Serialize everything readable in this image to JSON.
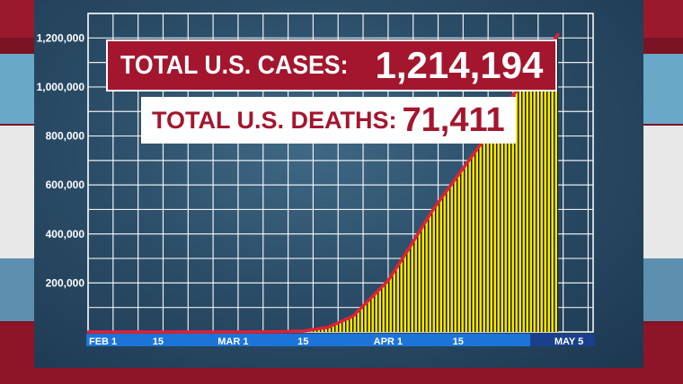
{
  "banners": {
    "cases_label": "TOTAL U.S. CASES:",
    "cases_value": "1,214,194",
    "deaths_label": "TOTAL U.S. DEATHS:",
    "deaths_value": "71,411"
  },
  "colors": {
    "brand_red": "#a3162e",
    "fill_yellow": "#f2e600",
    "line_red": "#e0203a",
    "axis_blue": "#1d74d8"
  },
  "chart_data": {
    "type": "area",
    "title": "",
    "xlabel": "",
    "ylabel": "",
    "ylim": [
      0,
      1300000
    ],
    "yticks": [
      200000,
      400000,
      600000,
      800000,
      1000000,
      1200000
    ],
    "ytick_labels": [
      "200,000",
      "400,000",
      "600,000",
      "800,000",
      "1,000,000",
      "1,200,000"
    ],
    "xticks": [
      "FEB 1",
      "15",
      "MAR 1",
      "15",
      "APR 1",
      "15",
      "MAY 5"
    ],
    "grid": true,
    "series": [
      {
        "values": [
          {
            "x": "2020-02-01",
            "y": 0
          },
          {
            "x": "2020-02-15",
            "y": 0
          },
          {
            "x": "2020-03-01",
            "y": 0
          },
          {
            "x": "2020-03-10",
            "y": 1000
          },
          {
            "x": "2020-03-15",
            "y": 3500
          },
          {
            "x": "2020-03-20",
            "y": 19000
          },
          {
            "x": "2020-03-25",
            "y": 65000
          },
          {
            "x": "2020-04-01",
            "y": 210000
          },
          {
            "x": "2020-04-05",
            "y": 335000
          },
          {
            "x": "2020-04-10",
            "y": 500000
          },
          {
            "x": "2020-04-15",
            "y": 640000
          },
          {
            "x": "2020-04-20",
            "y": 780000
          },
          {
            "x": "2020-04-25",
            "y": 940000
          },
          {
            "x": "2020-04-30",
            "y": 1070000
          },
          {
            "x": "2020-05-05",
            "y": 1214194
          }
        ]
      }
    ]
  }
}
